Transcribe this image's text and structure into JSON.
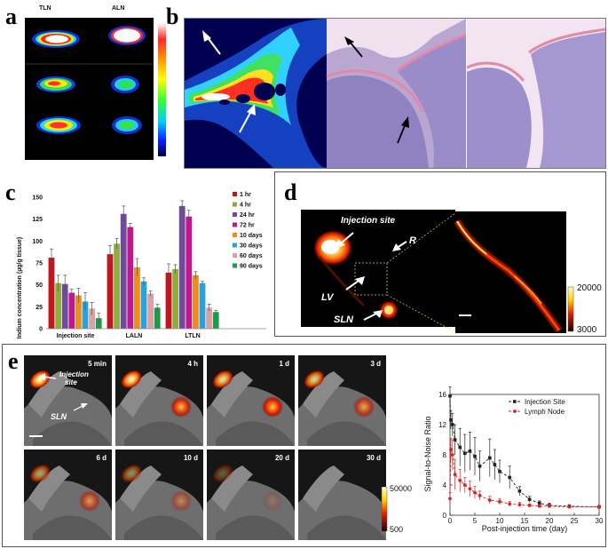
{
  "panels": {
    "a": {
      "letter": "a",
      "col_labels": [
        "TLN",
        "ALN"
      ]
    },
    "b": {
      "letter": "b"
    },
    "c": {
      "letter": "c"
    },
    "d": {
      "letter": "d",
      "labels": {
        "injection": "Injection site",
        "r": "R",
        "lv": "LV",
        "sln": "SLN"
      },
      "scale_max": "20000",
      "scale_min": "3000"
    },
    "e": {
      "letter": "e",
      "times": [
        "5 min",
        "4 h",
        "1 d",
        "3 d",
        "6 d",
        "10 d",
        "20 d",
        "30 d"
      ],
      "labels": {
        "injection_line1": "Injection",
        "injection_line2": "site",
        "sln": "SLN"
      },
      "scale_max": "50000",
      "scale_min": "500"
    }
  },
  "chart_data": [
    {
      "type": "bar",
      "ylabel": "Indium concentration (µg/g tissue)",
      "categories": [
        "Injection site",
        "LALN",
        "LTLN"
      ],
      "yticks": [
        "0",
        "25",
        "50",
        "75",
        "100",
        "125",
        "150"
      ],
      "ylim": [
        0,
        150
      ],
      "series": [
        {
          "name": "1 hr",
          "color": "#c0161c",
          "values": [
            81,
            85,
            64
          ],
          "err": [
            10,
            10,
            10
          ]
        },
        {
          "name": "4 hr",
          "color": "#8fad3f",
          "values": [
            52,
            97,
            68
          ],
          "err": [
            9,
            6,
            5
          ]
        },
        {
          "name": "24 hr",
          "color": "#6f4b9c",
          "values": [
            51,
            131,
            140
          ],
          "err": [
            10,
            9,
            6
          ]
        },
        {
          "name": "72 hr",
          "color": "#c2168f",
          "values": [
            41,
            116,
            128
          ],
          "err": [
            4,
            4,
            7
          ]
        },
        {
          "name": "10 days",
          "color": "#ef8c1b",
          "values": [
            38,
            70,
            61
          ],
          "err": [
            8,
            10,
            4
          ]
        },
        {
          "name": "30 days",
          "color": "#2aa2d9",
          "values": [
            31,
            54,
            52
          ],
          "err": [
            10,
            4,
            2
          ]
        },
        {
          "name": "60 days",
          "color": "#dba0a0",
          "values": [
            23,
            40,
            24
          ],
          "err": [
            7,
            3,
            4
          ]
        },
        {
          "name": "90 days",
          "color": "#1f9a4a",
          "values": [
            12,
            24,
            19
          ],
          "err": [
            6,
            4,
            2
          ]
        }
      ]
    },
    {
      "type": "line",
      "xlabel": "Post-injection time (day)",
      "ylabel": "Signal-to-Noise Ratio",
      "xlim": [
        0,
        30
      ],
      "ylim": [
        0,
        16
      ],
      "xticks": [
        "0",
        "5",
        "10",
        "15",
        "20",
        "25",
        "30"
      ],
      "yticks": [
        "0",
        "4",
        "8",
        "12",
        "16"
      ],
      "series": [
        {
          "name": "Injection Site",
          "color": "#222222",
          "x": [
            0,
            0.17,
            0.5,
            1,
            2,
            3,
            4,
            5,
            6,
            8,
            9,
            10,
            12,
            14,
            16,
            18,
            20,
            24,
            30
          ],
          "y": [
            15.8,
            12.6,
            12.0,
            10.0,
            9.0,
            8.2,
            8.5,
            7.8,
            6.5,
            7.6,
            6.7,
            5.8,
            5.0,
            3.2,
            2.1,
            1.6,
            1.3,
            1.2,
            1.1
          ],
          "err": [
            1.2,
            1.2,
            1.5,
            2.0,
            2.5,
            2.5,
            2.5,
            2.5,
            2.0,
            2.5,
            2.0,
            1.5,
            1.5,
            0.6,
            0.4,
            0.3,
            0.3,
            0.2,
            0.2
          ]
        },
        {
          "name": "Lymph Node",
          "color": "#e02020",
          "x": [
            0,
            0.17,
            0.5,
            1,
            2,
            3,
            4,
            5,
            6,
            8,
            10,
            12,
            14,
            16,
            18,
            20,
            24,
            30
          ],
          "y": [
            2.2,
            8.7,
            8.0,
            5.4,
            4.6,
            4.0,
            3.5,
            3.0,
            2.6,
            2.0,
            1.8,
            1.5,
            1.4,
            1.3,
            1.2,
            1.2,
            1.1,
            1.1
          ],
          "err": [
            0.8,
            1.5,
            2.0,
            2.0,
            1.5,
            1.0,
            1.0,
            0.8,
            0.6,
            0.5,
            0.4,
            0.3,
            0.3,
            0.2,
            0.2,
            0.2,
            0.2,
            0.2
          ]
        }
      ]
    }
  ]
}
